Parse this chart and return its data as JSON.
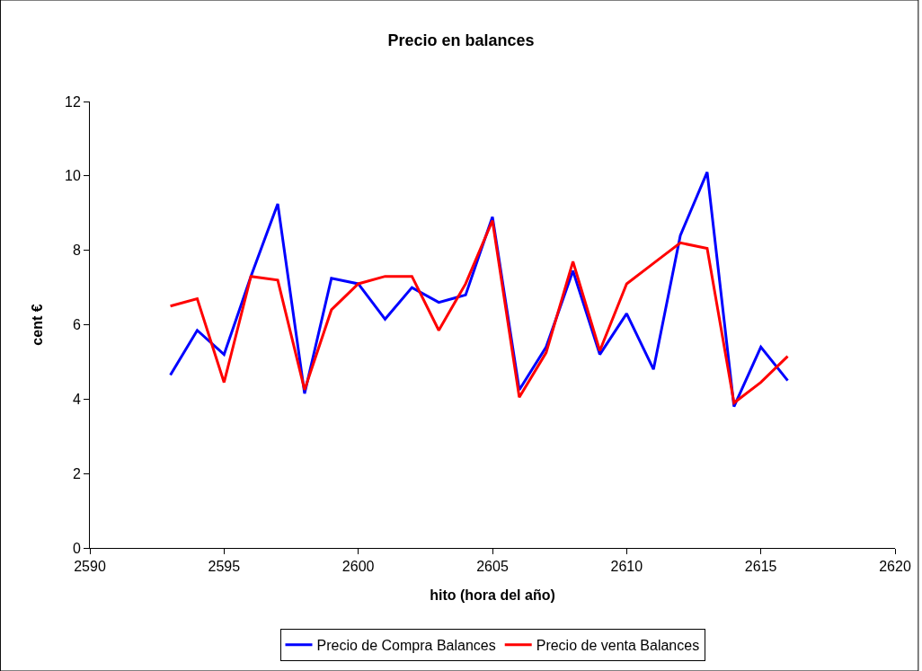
{
  "chart_data": {
    "type": "line",
    "title": "Precio en balances",
    "xlabel": "hito (hora del año)",
    "ylabel": "cent €",
    "x": [
      2593,
      2594,
      2595,
      2596,
      2597,
      2598,
      2599,
      2600,
      2601,
      2602,
      2603,
      2604,
      2605,
      2606,
      2607,
      2608,
      2609,
      2610,
      2611,
      2612,
      2613,
      2614,
      2615,
      2616
    ],
    "series": [
      {
        "name": "Precio de Compra Balances",
        "color": "#0000ff",
        "values": [
          4.65,
          5.85,
          5.2,
          7.3,
          9.25,
          4.15,
          7.25,
          7.1,
          6.15,
          7.0,
          6.6,
          6.8,
          8.9,
          4.25,
          5.4,
          7.45,
          5.2,
          6.3,
          4.8,
          8.4,
          10.1,
          3.8,
          5.4,
          4.5
        ]
      },
      {
        "name": "Precio de venta Balances",
        "color": "#ff0000",
        "values": [
          6.5,
          6.7,
          4.45,
          7.3,
          7.2,
          4.25,
          6.4,
          7.1,
          7.3,
          7.3,
          5.85,
          7.1,
          8.8,
          4.05,
          5.25,
          7.7,
          5.3,
          7.1,
          7.65,
          8.2,
          8.05,
          3.9,
          4.45,
          5.15
        ]
      }
    ],
    "xlim": [
      2590,
      2620
    ],
    "xticks": [
      2590,
      2595,
      2600,
      2605,
      2610,
      2615,
      2620
    ],
    "ylim": [
      0,
      12
    ],
    "yticks": [
      0,
      2,
      4,
      6,
      8,
      10,
      12
    ],
    "grid": false,
    "legend": "bottom",
    "marker": "none",
    "line_style": "solid"
  }
}
